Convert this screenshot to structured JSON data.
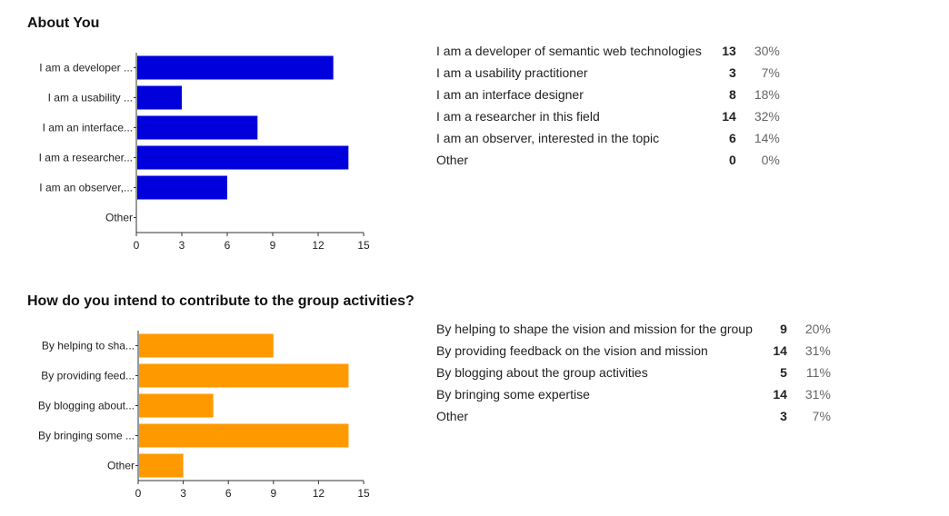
{
  "sections": [
    {
      "title": "About You",
      "color": "#0000dd",
      "chart_data": {
        "type": "bar",
        "orientation": "horizontal",
        "categories": [
          "I am a developer ...",
          "I am a usability ...",
          "I am an interface...",
          "I am a researcher...",
          "I am an observer,...",
          "Other"
        ],
        "values": [
          13,
          3,
          8,
          14,
          6,
          0
        ],
        "xlim": [
          0,
          15
        ],
        "xticks": [
          0,
          3,
          6,
          9,
          12,
          15
        ],
        "title": "",
        "xlabel": "",
        "ylabel": "",
        "grid": false
      },
      "table": [
        {
          "label": "I am a developer of semantic web technologies",
          "count": "13",
          "percent": "30%"
        },
        {
          "label": "I am a usability practitioner",
          "count": "3",
          "percent": "7%"
        },
        {
          "label": "I am an interface designer",
          "count": "8",
          "percent": "18%"
        },
        {
          "label": "I am a researcher in this field",
          "count": "14",
          "percent": "32%"
        },
        {
          "label": "I am an observer, interested in the topic",
          "count": "6",
          "percent": "14%"
        },
        {
          "label": "Other",
          "count": "0",
          "percent": "0%"
        }
      ]
    },
    {
      "title": "How do you intend to contribute to the group activities?",
      "color": "#ff9900",
      "chart_data": {
        "type": "bar",
        "orientation": "horizontal",
        "categories": [
          "By helping to sha...",
          "By providing feed...",
          "By blogging about...",
          "By bringing some ...",
          "Other"
        ],
        "values": [
          9,
          14,
          5,
          14,
          3
        ],
        "xlim": [
          0,
          15
        ],
        "xticks": [
          0,
          3,
          6,
          9,
          12,
          15
        ],
        "title": "",
        "xlabel": "",
        "ylabel": "",
        "grid": false
      },
      "table": [
        {
          "label": "By helping to shape the vision and mission for the group",
          "count": "9",
          "percent": "20%"
        },
        {
          "label": "By providing feedback on the vision and mission",
          "count": "14",
          "percent": "31%"
        },
        {
          "label": "By blogging about the group activities",
          "count": "5",
          "percent": "11%"
        },
        {
          "label": "By bringing some expertise",
          "count": "14",
          "percent": "31%"
        },
        {
          "label": "Other",
          "count": "3",
          "percent": "7%"
        }
      ]
    }
  ]
}
